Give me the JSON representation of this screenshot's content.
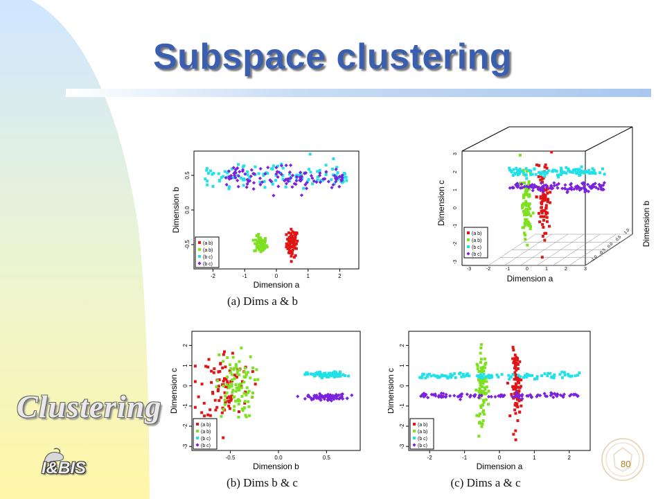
{
  "slide": {
    "title": "Subspace clustering",
    "side_label": "Clustering",
    "logo_text": "I&BIS",
    "page_number": "80"
  },
  "colors": {
    "ab_red": "#e01515",
    "ab_green": "#7fe022",
    "bc_cyan": "#22e0e8",
    "bc_purple": "#7a22dd",
    "title_blue": "#3a5fb0"
  },
  "chart_data": [
    {
      "id": "a",
      "type": "scatter",
      "caption": "(a) Dims a & b",
      "xlabel": "Dimension a",
      "ylabel": "Dimension b",
      "xlim": [
        -2.6,
        2.6
      ],
      "ylim": [
        -0.85,
        0.85
      ],
      "xticks": [
        "-2",
        "-1",
        "0",
        "1",
        "2"
      ],
      "yticks": [
        "-0.5",
        "0.0",
        "0.5"
      ],
      "legend": {
        "position": "bottom-left",
        "entries": [
          "(a b)",
          "(a b)",
          "(b c)",
          "(b c)"
        ]
      },
      "series": [
        {
          "color": "#e01515",
          "marker": "square",
          "center": [
            0.5,
            -0.48
          ],
          "spread": [
            0.09,
            0.1
          ],
          "count": 70
        },
        {
          "color": "#7fe022",
          "marker": "square",
          "center": [
            -0.5,
            -0.5
          ],
          "spread": [
            0.1,
            0.06
          ],
          "count": 70
        },
        {
          "color": "#22e0e8",
          "marker": "square",
          "range_x": [
            -2.3,
            2.3
          ],
          "center_y": 0.5,
          "spread_y": 0.08,
          "count": 110
        },
        {
          "color": "#7a22dd",
          "marker": "diamond",
          "range_x": [
            -1.6,
            2.2
          ],
          "center_y": 0.48,
          "spread_y": 0.08,
          "count": 110
        }
      ]
    },
    {
      "id": "3d",
      "type": "scatter3d",
      "caption": "",
      "xlabel": "Dimension a",
      "ylabel": "Dimension b",
      "zlabel": "Dimension c",
      "xticks": [
        "-3",
        "-2",
        "-1",
        "0",
        "1",
        "2",
        "3"
      ],
      "yticks": [
        "-1.0",
        "-0.5",
        "0.0",
        "0.5",
        "1.0"
      ],
      "zticks": [
        "-3",
        "-2",
        "-1",
        "0",
        "1",
        "2",
        "3"
      ],
      "legend": {
        "position": "bottom-left",
        "entries": [
          "(a b)",
          "(a b)",
          "(b c)",
          "(b c)"
        ]
      },
      "series": [
        {
          "color": "#e01515",
          "marker": "square",
          "note": "a≈0.5, b≈-0.5, c spread"
        },
        {
          "color": "#7fe022",
          "marker": "square",
          "note": "a≈-0.5, b≈-0.5, c spread"
        },
        {
          "color": "#22e0e8",
          "marker": "square",
          "note": "a spread, b≈0.5, c≈0.5"
        },
        {
          "color": "#7a22dd",
          "marker": "diamond",
          "note": "a spread, b≈0.5, c≈-0.5"
        }
      ]
    },
    {
      "id": "b",
      "type": "scatter",
      "caption": "(b) Dims b & c",
      "xlabel": "Dimension b",
      "ylabel": "Dimension c",
      "xlim": [
        -0.9,
        0.85
      ],
      "ylim": [
        -3.2,
        2.7
      ],
      "xticks": [
        "-0.5",
        "0.0",
        "0.5"
      ],
      "yticks": [
        "-3",
        "-2",
        "-1",
        "0",
        "1",
        "2"
      ],
      "legend": {
        "position": "bottom-left",
        "entries": [
          "(a b)",
          "(a b)",
          "(b c)",
          "(b c)"
        ]
      },
      "series": [
        {
          "color": "#e01515",
          "marker": "square",
          "center": [
            -0.55,
            0.0
          ],
          "spread": [
            0.13,
            0.9
          ],
          "count": 90
        },
        {
          "color": "#7fe022",
          "marker": "square",
          "center": [
            -0.45,
            0.0
          ],
          "spread": [
            0.1,
            0.8
          ],
          "count": 90
        },
        {
          "color": "#22e0e8",
          "marker": "square",
          "center": [
            0.5,
            0.55
          ],
          "spread": [
            0.1,
            0.07
          ],
          "count": 90
        },
        {
          "color": "#7a22dd",
          "marker": "diamond",
          "center": [
            0.5,
            -0.55
          ],
          "spread": [
            0.1,
            0.07
          ],
          "count": 90
        }
      ]
    },
    {
      "id": "c",
      "type": "scatter",
      "caption": "(c) Dims a & c",
      "xlabel": "Dimension a",
      "ylabel": "Dimension c",
      "xlim": [
        -2.6,
        2.6
      ],
      "ylim": [
        -3.2,
        2.7
      ],
      "xticks": [
        "-2",
        "-1",
        "0",
        "1",
        "2"
      ],
      "yticks": [
        "-3",
        "-2",
        "-1",
        "0",
        "1",
        "2"
      ],
      "legend": {
        "position": "bottom-left",
        "entries": [
          "(a b)",
          "(a b)",
          "(b c)",
          "(b c)"
        ]
      },
      "series": [
        {
          "color": "#e01515",
          "marker": "square",
          "center": [
            0.5,
            0.0
          ],
          "spread": [
            0.07,
            0.85
          ],
          "count": 90
        },
        {
          "color": "#7fe022",
          "marker": "square",
          "center": [
            -0.5,
            0.0
          ],
          "spread": [
            0.07,
            0.85
          ],
          "count": 90
        },
        {
          "color": "#22e0e8",
          "marker": "square",
          "range_x": [
            -2.3,
            2.3
          ],
          "center_y": 0.5,
          "spread_y": 0.07,
          "count": 100
        },
        {
          "color": "#7a22dd",
          "marker": "diamond",
          "range_x": [
            -2.3,
            2.3
          ],
          "center_y": -0.5,
          "spread_y": 0.07,
          "count": 100
        }
      ]
    }
  ]
}
